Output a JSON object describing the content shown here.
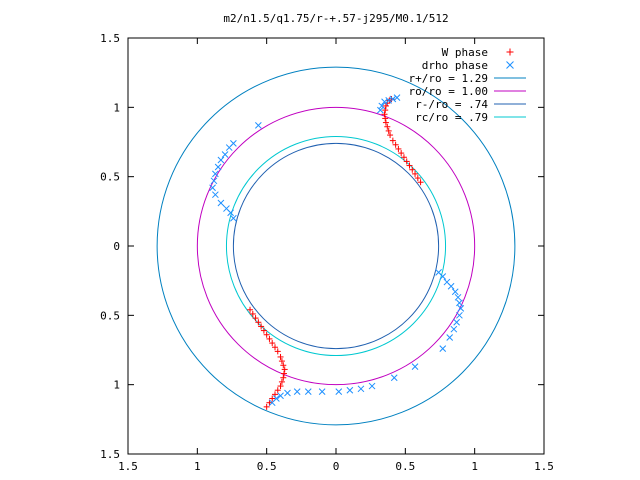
{
  "chart_data": {
    "type": "scatter",
    "title": "m2/n1.5/q1.75/r-+.57-j295/M0.1/512",
    "xlim": [
      -1.5,
      1.5
    ],
    "ylim": [
      -1.5,
      1.5
    ],
    "x_ticks": [
      -1.5,
      -1,
      -0.5,
      0,
      0.5,
      1,
      1.5
    ],
    "x_tick_labels": [
      "1.5",
      "1",
      "0.5",
      "0",
      "0.5",
      "1",
      "1.5"
    ],
    "y_ticks": [
      1.5,
      1,
      0.5,
      0,
      -0.5,
      -1,
      -1.5
    ],
    "y_tick_labels": [
      "1.5",
      "1",
      "0.5",
      "0",
      "0.5",
      "1",
      "1.5"
    ],
    "grid": false,
    "legend_position": "top-right",
    "legend": [
      {
        "label": "W phase",
        "marker": "+",
        "color": "#ff0000"
      },
      {
        "label": "drho phase",
        "marker": "x",
        "color": "#1e90ff"
      },
      {
        "label": "r+/ro = 1.29",
        "marker": "line",
        "color": "#0080c0"
      },
      {
        "label": "ro/ro = 1.00",
        "marker": "line",
        "color": "#c000c0"
      },
      {
        "label": "r-/ro = .74",
        "marker": "line",
        "color": "#2060b0"
      },
      {
        "label": "rc/ro = .79",
        "marker": "line",
        "color": "#00c8d0"
      }
    ],
    "circles": [
      {
        "radius": 1.29,
        "color": "#0080c0"
      },
      {
        "radius": 1.0,
        "color": "#c000c0"
      },
      {
        "radius": 0.74,
        "color": "#2060b0"
      },
      {
        "radius": 0.79,
        "color": "#00c8d0"
      }
    ],
    "series": [
      {
        "name": "W phase",
        "marker": "+",
        "color": "#ff0000",
        "points": [
          [
            0.61,
            0.46
          ],
          [
            0.59,
            0.49
          ],
          [
            0.57,
            0.52
          ],
          [
            0.55,
            0.55
          ],
          [
            0.53,
            0.58
          ],
          [
            0.51,
            0.61
          ],
          [
            0.49,
            0.64
          ],
          [
            0.47,
            0.67
          ],
          [
            0.45,
            0.7
          ],
          [
            0.43,
            0.73
          ],
          [
            0.41,
            0.76
          ],
          [
            0.39,
            0.8
          ],
          [
            0.38,
            0.83
          ],
          [
            0.37,
            0.86
          ],
          [
            0.36,
            0.89
          ],
          [
            0.355,
            0.92
          ],
          [
            0.35,
            0.95
          ],
          [
            0.355,
            0.98
          ],
          [
            0.36,
            1.01
          ],
          [
            0.37,
            1.03
          ],
          [
            0.385,
            1.05
          ],
          [
            0.4,
            1.06
          ],
          [
            -0.62,
            -0.46
          ],
          [
            -0.6,
            -0.49
          ],
          [
            -0.58,
            -0.52
          ],
          [
            -0.56,
            -0.55
          ],
          [
            -0.54,
            -0.58
          ],
          [
            -0.52,
            -0.61
          ],
          [
            -0.5,
            -0.64
          ],
          [
            -0.48,
            -0.67
          ],
          [
            -0.46,
            -0.7
          ],
          [
            -0.44,
            -0.73
          ],
          [
            -0.42,
            -0.76
          ],
          [
            -0.4,
            -0.8
          ],
          [
            -0.39,
            -0.83
          ],
          [
            -0.38,
            -0.86
          ],
          [
            -0.37,
            -0.89
          ],
          [
            -0.375,
            -0.92
          ],
          [
            -0.38,
            -0.95
          ],
          [
            -0.39,
            -0.98
          ],
          [
            -0.4,
            -1.01
          ],
          [
            -0.42,
            -1.04
          ],
          [
            -0.44,
            -1.07
          ],
          [
            -0.46,
            -1.1
          ],
          [
            -0.48,
            -1.13
          ],
          [
            -0.5,
            -1.16
          ]
        ]
      },
      {
        "name": "drho phase",
        "marker": "x",
        "color": "#1e90ff",
        "points": [
          [
            0.44,
            1.07
          ],
          [
            0.41,
            1.06
          ],
          [
            0.38,
            1.05
          ],
          [
            0.35,
            1.04
          ],
          [
            0.33,
            1.01
          ],
          [
            0.32,
            0.98
          ],
          [
            -0.56,
            0.87
          ],
          [
            -0.74,
            0.74
          ],
          [
            -0.77,
            0.71
          ],
          [
            -0.8,
            0.66
          ],
          [
            -0.83,
            0.62
          ],
          [
            -0.85,
            0.57
          ],
          [
            -0.87,
            0.52
          ],
          [
            -0.88,
            0.47
          ],
          [
            -0.89,
            0.42
          ],
          [
            -0.87,
            0.37
          ],
          [
            -0.83,
            0.31
          ],
          [
            -0.79,
            0.27
          ],
          [
            -0.76,
            0.24
          ],
          [
            -0.74,
            0.2
          ],
          [
            0.74,
            -0.19
          ],
          [
            0.77,
            -0.22
          ],
          [
            0.8,
            -0.26
          ],
          [
            0.83,
            -0.29
          ],
          [
            0.86,
            -0.33
          ],
          [
            0.88,
            -0.37
          ],
          [
            0.89,
            -0.41
          ],
          [
            0.9,
            -0.45
          ],
          [
            0.89,
            -0.5
          ],
          [
            0.87,
            -0.55
          ],
          [
            0.85,
            -0.6
          ],
          [
            0.82,
            -0.66
          ],
          [
            0.77,
            -0.74
          ],
          [
            0.57,
            -0.87
          ],
          [
            -0.46,
            -1.13
          ],
          [
            -0.43,
            -1.1
          ],
          [
            -0.4,
            -1.08
          ],
          [
            -0.35,
            -1.06
          ],
          [
            -0.28,
            -1.05
          ],
          [
            -0.2,
            -1.05
          ],
          [
            -0.1,
            -1.05
          ],
          [
            0.02,
            -1.05
          ],
          [
            0.1,
            -1.04
          ],
          [
            0.18,
            -1.03
          ],
          [
            0.26,
            -1.01
          ],
          [
            0.42,
            -0.95
          ]
        ]
      }
    ]
  }
}
